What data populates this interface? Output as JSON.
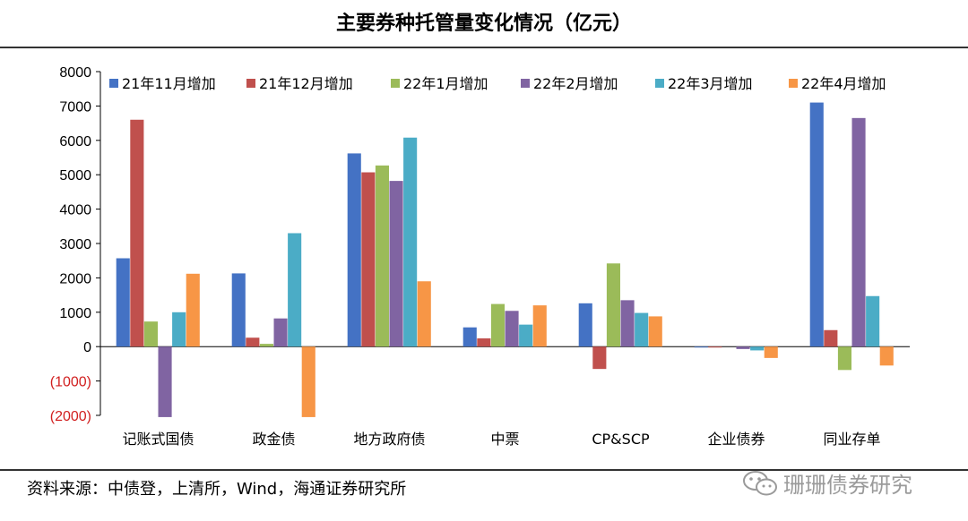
{
  "page": {
    "source": "资料来源：中债登，上清所，Wind，海通证券研究所",
    "watermark": "珊珊债券研究"
  },
  "chart_data": {
    "type": "bar",
    "title": "主要券种托管量变化情况（亿元）",
    "categories": [
      "记账式国债",
      "政金债",
      "地方政府债",
      "中票",
      "CP&SCP",
      "企业债券",
      "同业存单"
    ],
    "series": [
      {
        "name": "21年11月增加",
        "color": "#4472c4",
        "values": [
          2570,
          2130,
          5620,
          560,
          1260,
          -20,
          7100
        ]
      },
      {
        "name": "21年12月增加",
        "color": "#c0504d",
        "values": [
          6600,
          260,
          5070,
          240,
          -650,
          -10,
          480
        ]
      },
      {
        "name": "22年1月增加",
        "color": "#9bbb59",
        "values": [
          730,
          80,
          5270,
          1240,
          2420,
          0,
          -680
        ]
      },
      {
        "name": "22年2月增加",
        "color": "#8064a2",
        "values": [
          -2050,
          820,
          4820,
          1040,
          1350,
          -70,
          6650
        ]
      },
      {
        "name": "22年3月增加",
        "color": "#4bacc6",
        "values": [
          1000,
          3300,
          6080,
          640,
          980,
          -110,
          1470
        ]
      },
      {
        "name": "22年4月增加",
        "color": "#f79646",
        "values": [
          2120,
          -2050,
          1900,
          1200,
          880,
          -330,
          -550
        ]
      }
    ],
    "ylim": [
      -2000,
      8000
    ],
    "yticks": [
      8000,
      7000,
      6000,
      5000,
      4000,
      3000,
      2000,
      1000,
      0,
      -1000,
      -2000
    ],
    "ytick_labels": [
      "8000",
      "7000",
      "6000",
      "5000",
      "4000",
      "3000",
      "2000",
      "1000",
      "0",
      "(1000)",
      "(2000)"
    ],
    "legend_position": "top",
    "grid": false
  }
}
